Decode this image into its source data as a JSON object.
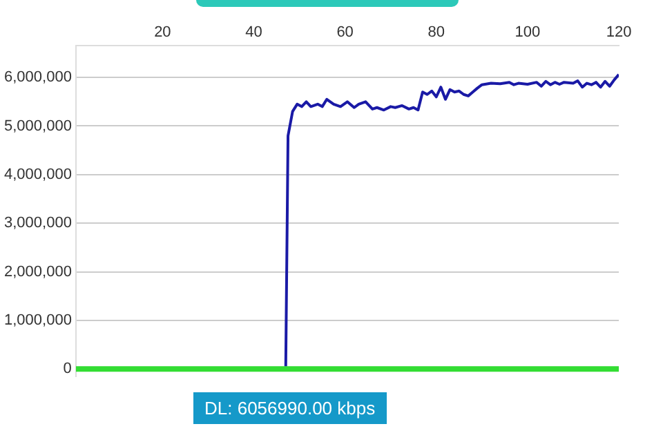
{
  "chart_data": {
    "type": "line",
    "annotations": [
      "DL: 6056990.00 kbps"
    ],
    "series": [
      {
        "color": "#33dd33",
        "x": [
          1,
          20,
          40,
          60,
          80,
          100,
          120
        ],
        "values": [
          0,
          0,
          0,
          0,
          0,
          0,
          0
        ]
      },
      {
        "color": "#1a1aa6",
        "x": [
          47,
          47.5,
          48.5,
          49.5,
          50.5,
          51.5,
          52.5,
          54,
          55,
          56,
          57.5,
          59,
          60.5,
          62,
          63,
          64.5,
          66,
          67,
          68.5,
          70,
          71,
          72.5,
          74,
          75,
          76,
          77,
          78,
          79,
          80,
          81,
          82,
          83,
          84,
          85,
          86,
          87,
          88,
          89,
          90,
          92,
          94,
          96,
          97,
          98,
          100,
          102,
          103,
          104,
          105,
          106,
          107,
          108,
          110,
          111,
          112,
          113,
          114,
          115,
          116,
          117,
          118,
          119,
          120
        ],
        "values": [
          50000,
          4800000,
          5300000,
          5450000,
          5400000,
          5500000,
          5400000,
          5450000,
          5400000,
          5550000,
          5450000,
          5400000,
          5500000,
          5380000,
          5450000,
          5500000,
          5350000,
          5380000,
          5330000,
          5400000,
          5380000,
          5420000,
          5350000,
          5380000,
          5330000,
          5700000,
          5650000,
          5720000,
          5600000,
          5800000,
          5550000,
          5750000,
          5700000,
          5720000,
          5650000,
          5620000,
          5700000,
          5780000,
          5850000,
          5880000,
          5870000,
          5900000,
          5850000,
          5880000,
          5860000,
          5900000,
          5820000,
          5920000,
          5850000,
          5900000,
          5860000,
          5900000,
          5880000,
          5930000,
          5800000,
          5880000,
          5850000,
          5900000,
          5800000,
          5920000,
          5820000,
          5950000,
          6060000
        ]
      }
    ],
    "xlim": [
      1,
      120
    ],
    "xticks": [
      20,
      40,
      60,
      80,
      100,
      120
    ],
    "ylim": [
      -150000,
      6650000
    ],
    "yticks": [
      {
        "value": 0,
        "label": "0"
      },
      {
        "value": 1000000,
        "label": "1,000,000"
      },
      {
        "value": 2000000,
        "label": "2,000,000"
      },
      {
        "value": 3000000,
        "label": "3,000,000"
      },
      {
        "value": 4000000,
        "label": "4,000,000"
      },
      {
        "value": 5000000,
        "label": "5,000,000"
      },
      {
        "value": 6000000,
        "label": "6,000,000"
      }
    ],
    "grid": "y",
    "legend": false
  }
}
